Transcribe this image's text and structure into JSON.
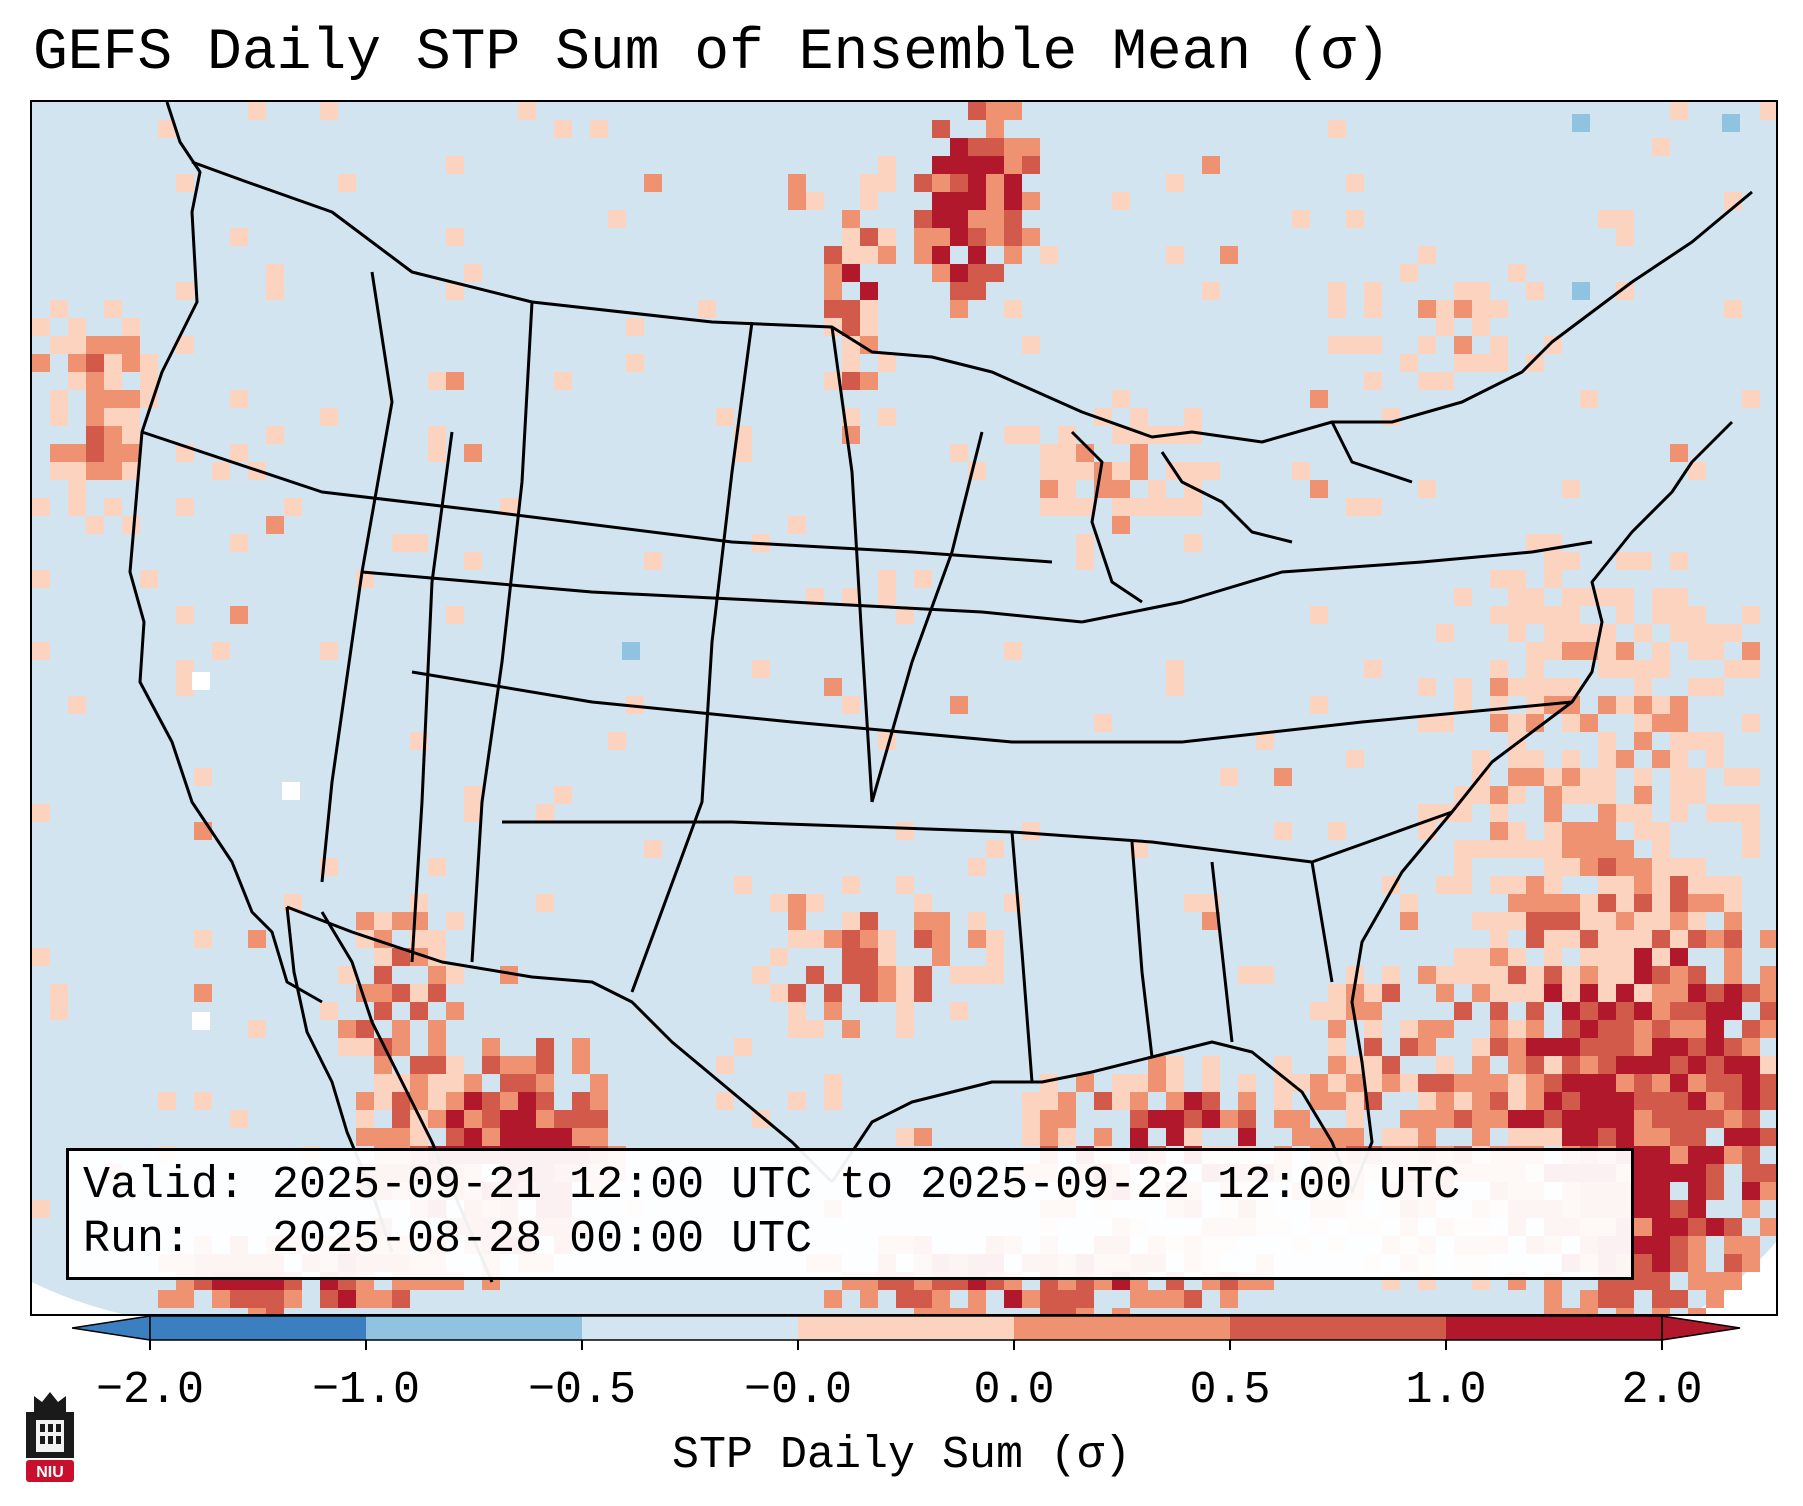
{
  "title": "GEFS Daily STP Sum of Ensemble Mean (σ)",
  "info": {
    "valid_line": "Valid: 2025-09-21 12:00 UTC to 2025-09-22 12:00 UTC",
    "run_line": "Run:   2025-08-28 00:00 UTC"
  },
  "colorbar": {
    "label": "STP Daily Sum (σ)",
    "ticks": [
      "−2.0",
      "−1.0",
      "−0.5",
      "−0.0",
      "0.0",
      "0.5",
      "1.0",
      "2.0"
    ],
    "colors": [
      "#3b7fc0",
      "#8fc3df",
      "#d3e5f0",
      "#f8f8f8",
      "#fcd3bf",
      "#ee9272",
      "#d25a4b",
      "#b2182b"
    ],
    "extend": "both"
  },
  "map": {
    "background_color": "#d1e4f0",
    "projection": "Lambert Conformal (CONUS)",
    "anomaly_regions": [
      {
        "region": "Northern Minnesota / Manitoba border",
        "level": "high"
      },
      {
        "region": "North Dakota / Manitoba",
        "level": "moderate"
      },
      {
        "region": "Western Atlantic southeast of Florida",
        "level": "high"
      },
      {
        "region": "Offshore Mid-Atlantic",
        "level": "moderate"
      },
      {
        "region": "Gulf of Mexico / northern Caribbean",
        "level": "high"
      },
      {
        "region": "Northwest Mexico / Sierra Madre",
        "level": "high"
      },
      {
        "region": "Central Texas",
        "level": "moderate"
      },
      {
        "region": "Pacific off northern California",
        "level": "moderate"
      }
    ]
  },
  "logo": {
    "text": "NIU"
  }
}
